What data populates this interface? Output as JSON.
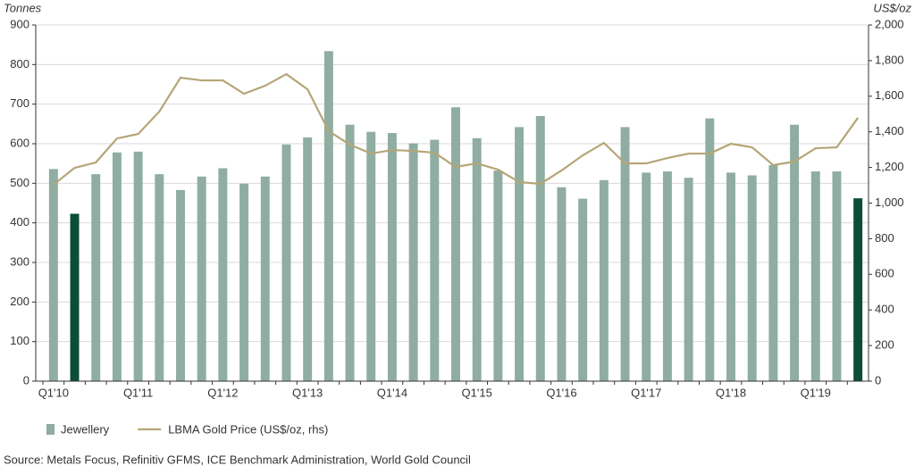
{
  "chart_data": {
    "type": "bar-line",
    "y_label": "Tonnes",
    "y2_label": "US$/oz",
    "source": "Source: Metals Focus, Refinitiv GFMS, ICE Benchmark Administration, World Gold Council",
    "categories": [
      "Q1'10",
      null,
      null,
      null,
      "Q1'11",
      null,
      null,
      null,
      "Q1'12",
      null,
      null,
      null,
      "Q1'13",
      null,
      null,
      null,
      "Q1'14",
      null,
      null,
      null,
      "Q1'15",
      null,
      null,
      null,
      "Q1'16",
      null,
      null,
      null,
      "Q1'17",
      null,
      null,
      null,
      "Q1'18",
      null,
      null,
      null,
      "Q1'19",
      null,
      null
    ],
    "series": [
      {
        "name": "Jewellery",
        "type": "bar",
        "color": "#8fada0",
        "bar_colors": [
          "#8fada0",
          "#0b4d38",
          "#8fada0",
          "#8fada0",
          "#8fada0",
          "#8fada0",
          "#8fada0",
          "#8fada0",
          "#8fada0",
          "#8fada0",
          "#8fada0",
          "#8fada0",
          "#8fada0",
          "#8fada0",
          "#8fada0",
          "#8fada0",
          "#8fada0",
          "#8fada0",
          "#8fada0",
          "#8fada0",
          "#8fada0",
          "#8fada0",
          "#8fada0",
          "#8fada0",
          "#8fada0",
          "#8fada0",
          "#8fada0",
          "#8fada0",
          "#8fada0",
          "#8fada0",
          "#8fada0",
          "#8fada0",
          "#8fada0",
          "#8fada0",
          "#8fada0",
          "#8fada0",
          "#8fada0",
          "#8fada0",
          "#0b4d38"
        ],
        "values": [
          536,
          423,
          523,
          578,
          580,
          523,
          483,
          517,
          538,
          499,
          517,
          598,
          616,
          834,
          648,
          630,
          627,
          601,
          610,
          692,
          614,
          532,
          642,
          670,
          490,
          461,
          508,
          642,
          527,
          530,
          514,
          664,
          527,
          520,
          546,
          648,
          530,
          530,
          462
        ]
      },
      {
        "name": "LBMA Gold Price (US$/oz, rhs)",
        "type": "line",
        "axis": "y2",
        "color": "#b5a677",
        "values": [
          1103,
          1198,
          1228,
          1363,
          1388,
          1514,
          1704,
          1689,
          1689,
          1614,
          1659,
          1724,
          1639,
          1404,
          1328,
          1278,
          1298,
          1293,
          1283,
          1203,
          1223,
          1188,
          1118,
          1108,
          1183,
          1268,
          1338,
          1223,
          1223,
          1253,
          1278,
          1278,
          1333,
          1313,
          1213,
          1233,
          1308,
          1313,
          1479
        ]
      }
    ],
    "ylim": [
      0,
      900
    ],
    "yticks": [
      0,
      100,
      200,
      300,
      400,
      500,
      600,
      700,
      800,
      900
    ],
    "y2lim": [
      0,
      2000
    ],
    "y2ticks": [
      0,
      200,
      400,
      600,
      800,
      {
        "value": 1000,
        "label": "1,000"
      },
      {
        "value": 1200,
        "label": "1,200"
      },
      {
        "value": 1400,
        "label": "1,400"
      },
      {
        "value": 1600,
        "label": "1,600"
      },
      {
        "value": 1800,
        "label": "1,800"
      },
      {
        "value": 2000,
        "label": "2,000"
      }
    ],
    "grid": true
  }
}
